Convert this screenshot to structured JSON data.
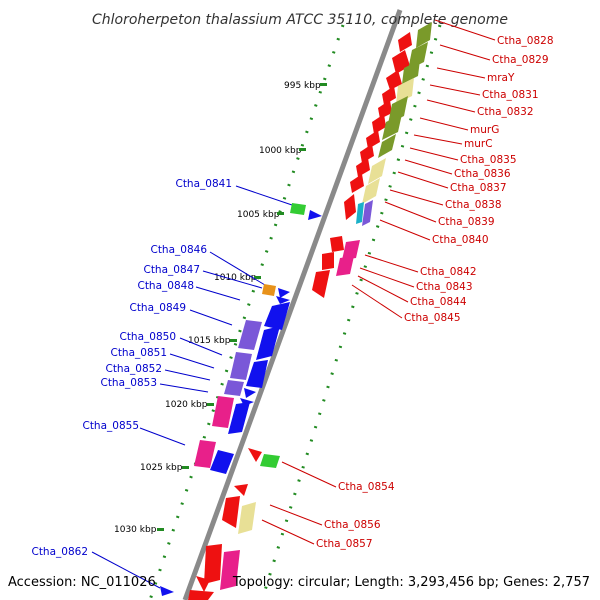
{
  "title": "Chloroherpeton thalassium ATCC 35110, complete genome",
  "footer": {
    "accession": "Accession: NC_011026",
    "summary": "Topology: circular; Length: 3,293,456 bp; Genes: 2,757"
  },
  "ruler": [
    "995 kbp",
    "1000 kbp",
    "1005 kbp",
    "1010 kbp",
    "1015 kbp",
    "1020 kbp",
    "1025 kbp",
    "1030 kbp"
  ],
  "colors": {
    "backbone": "#8a8a8a",
    "forward_red": "#ee1111",
    "reverse_blue": "#1111ee",
    "olive": "#7a9a2a",
    "khaki": "#e8e096",
    "magenta": "#e8208a",
    "purple": "#7a58d8",
    "green": "#33cc33",
    "orange": "#e8921a",
    "cyan": "#1ab0c8",
    "tick_green": "#228b22"
  },
  "genes_right": [
    "Ctha_0828",
    "Ctha_0829",
    "mraY",
    "Ctha_0831",
    "Ctha_0832",
    "murG",
    "murC",
    "Ctha_0835",
    "Ctha_0836",
    "Ctha_0837",
    "Ctha_0838",
    "Ctha_0839",
    "Ctha_0840",
    "Ctha_0842",
    "Ctha_0843",
    "Ctha_0844",
    "Ctha_0845",
    "Ctha_0854",
    "Ctha_0856",
    "Ctha_0857"
  ],
  "genes_left": [
    "Ctha_0841",
    "Ctha_0846",
    "Ctha_0847",
    "Ctha_0848",
    "Ctha_0849",
    "Ctha_0850",
    "Ctha_0851",
    "Ctha_0852",
    "Ctha_0853",
    "Ctha_0855",
    "Ctha_0862"
  ]
}
